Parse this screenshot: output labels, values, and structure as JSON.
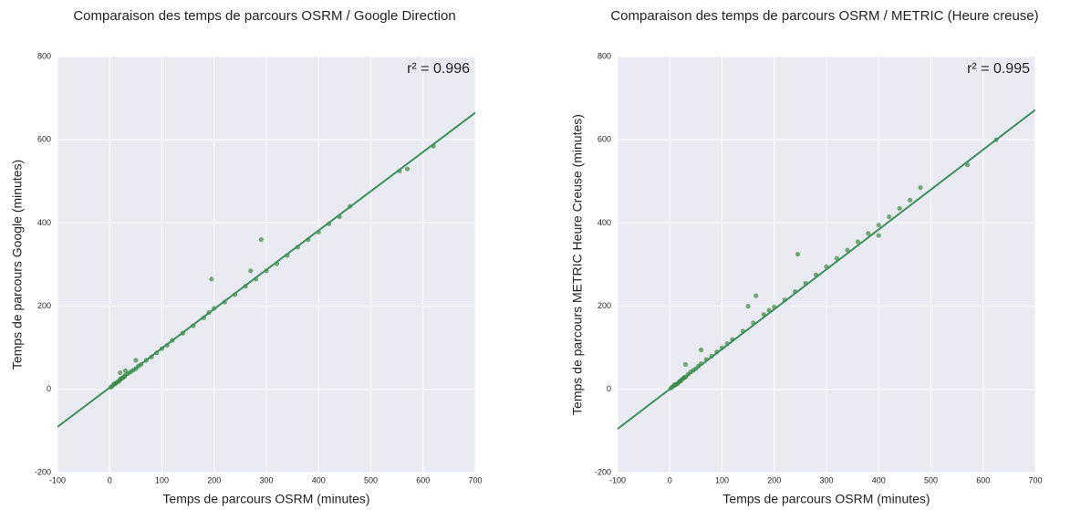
{
  "chart_data": [
    {
      "type": "scatter",
      "title": "Comparaison des temps de parcours OSRM / Google Direction",
      "xlabel": "Temps de parcours OSRM (minutes)",
      "ylabel": "Temps de parcours Google (minutes)",
      "annotation": "r² = 0.996",
      "x": [
        2,
        5,
        8,
        10,
        12,
        15,
        18,
        20,
        22,
        25,
        28,
        30,
        35,
        40,
        45,
        50,
        55,
        60,
        70,
        80,
        90,
        100,
        110,
        120,
        140,
        160,
        180,
        190,
        200,
        220,
        240,
        260,
        280,
        300,
        320,
        340,
        360,
        380,
        400,
        420,
        440,
        460,
        555,
        570,
        620,
        30,
        50,
        195,
        290,
        20,
        270
      ],
      "y": [
        5,
        8,
        12,
        14,
        15,
        18,
        20,
        24,
        26,
        28,
        30,
        34,
        38,
        42,
        46,
        50,
        56,
        60,
        70,
        78,
        88,
        98,
        106,
        118,
        135,
        153,
        172,
        185,
        195,
        210,
        228,
        248,
        265,
        285,
        302,
        322,
        342,
        360,
        378,
        398,
        415,
        440,
        525,
        530,
        585,
        45,
        70,
        265,
        360,
        40,
        285
      ],
      "fit": {
        "x": [
          -100,
          700
        ],
        "y": [
          -90,
          665
        ]
      },
      "xlim": [
        -100,
        700
      ],
      "ylim": [
        -200,
        800
      ],
      "xticks": [
        -100,
        0,
        100,
        200,
        300,
        400,
        500,
        600,
        700
      ],
      "yticks": [
        -200,
        0,
        200,
        400,
        600,
        800
      ],
      "color": "#1e7a1e",
      "line_color": "#3a8f5c",
      "grid": true
    },
    {
      "type": "scatter",
      "title": "Comparaison des temps de parcours OSRM / METRIC (Heure creuse)",
      "xlabel": "Temps de parcours OSRM (minutes)",
      "ylabel": "Temps de parcours METRIC Heure Creuse (minutes)",
      "annotation": "r² = 0.995",
      "x": [
        2,
        5,
        8,
        10,
        12,
        15,
        18,
        20,
        22,
        25,
        28,
        30,
        35,
        40,
        45,
        50,
        55,
        60,
        70,
        80,
        90,
        100,
        110,
        120,
        140,
        160,
        180,
        190,
        200,
        220,
        240,
        260,
        280,
        300,
        320,
        340,
        360,
        380,
        400,
        420,
        440,
        460,
        570,
        625,
        245,
        60,
        150,
        165,
        30,
        400,
        480
      ],
      "y": [
        3,
        6,
        9,
        11,
        12,
        14,
        18,
        20,
        22,
        26,
        28,
        30,
        36,
        42,
        46,
        50,
        56,
        62,
        72,
        80,
        90,
        100,
        110,
        120,
        140,
        160,
        180,
        190,
        198,
        215,
        235,
        255,
        275,
        295,
        315,
        335,
        355,
        375,
        395,
        415,
        435,
        455,
        540,
        600,
        325,
        95,
        200,
        225,
        60,
        370,
        485
      ],
      "fit": {
        "x": [
          -100,
          700
        ],
        "y": [
          -95,
          672
        ]
      },
      "xlim": [
        -100,
        700
      ],
      "ylim": [
        -200,
        800
      ],
      "xticks": [
        -100,
        0,
        100,
        200,
        300,
        400,
        500,
        600,
        700
      ],
      "yticks": [
        -200,
        0,
        200,
        400,
        600,
        800
      ],
      "color": "#1e7a1e",
      "line_color": "#3a8f5c",
      "grid": true
    }
  ]
}
